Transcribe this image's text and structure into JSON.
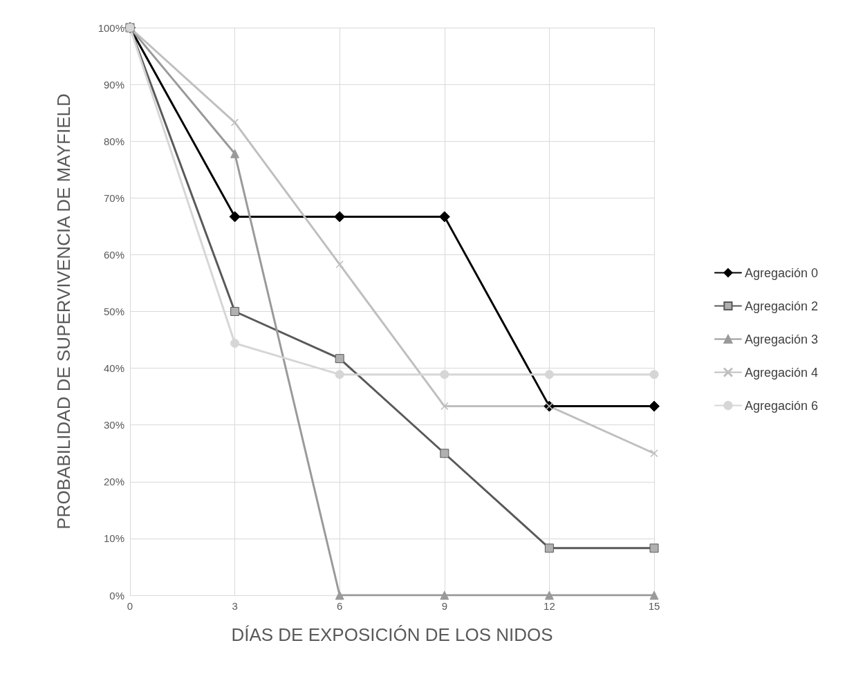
{
  "chart_data": {
    "type": "line",
    "xlabel": "DÍAS DE EXPOSICIÓN DE LOS NIDOS",
    "ylabel": "PROBABILIDAD DE SUPERVIVENCIA DE MAYFIELD",
    "x": [
      0,
      3,
      6,
      9,
      12,
      15
    ],
    "series": [
      {
        "name": "Agregación 0",
        "color": "#000000",
        "marker": "diamond",
        "values": [
          100,
          66.7,
          66.7,
          66.7,
          33.3,
          33.3
        ]
      },
      {
        "name": "Agregación 2",
        "color": "#595959",
        "marker": "square",
        "values": [
          100,
          50,
          41.7,
          25,
          8.3,
          8.3
        ]
      },
      {
        "name": "Agregación 3",
        "color": "#9a9a9a",
        "marker": "triangle",
        "values": [
          100,
          77.8,
          0,
          0,
          0,
          0
        ]
      },
      {
        "name": "Agregación 4",
        "color": "#bfbfbf",
        "marker": "cross",
        "values": [
          100,
          83.3,
          58.3,
          33.3,
          33.3,
          25
        ]
      },
      {
        "name": "Agregación 6",
        "color": "#d6d6d6",
        "marker": "circle",
        "values": [
          100,
          44.4,
          38.9,
          38.9,
          38.9,
          38.9
        ]
      }
    ],
    "xlim": [
      0,
      15
    ],
    "xticks": [
      0,
      3,
      6,
      9,
      12,
      15
    ],
    "ylim": [
      0,
      100
    ],
    "yticks": [
      {
        "value": 0,
        "label": "0%"
      },
      {
        "value": 10,
        "label": "10%"
      },
      {
        "value": 20,
        "label": "20%"
      },
      {
        "value": 30,
        "label": "30%"
      },
      {
        "value": 40,
        "label": "40%"
      },
      {
        "value": 50,
        "label": "50%"
      },
      {
        "value": 60,
        "label": "60%"
      },
      {
        "value": 70,
        "label": "70%"
      },
      {
        "value": 80,
        "label": "80%"
      },
      {
        "value": 90,
        "label": "90%"
      },
      {
        "value": 100,
        "label": "100%"
      }
    ],
    "grid": true,
    "legend": "right",
    "line_style": "solid"
  }
}
